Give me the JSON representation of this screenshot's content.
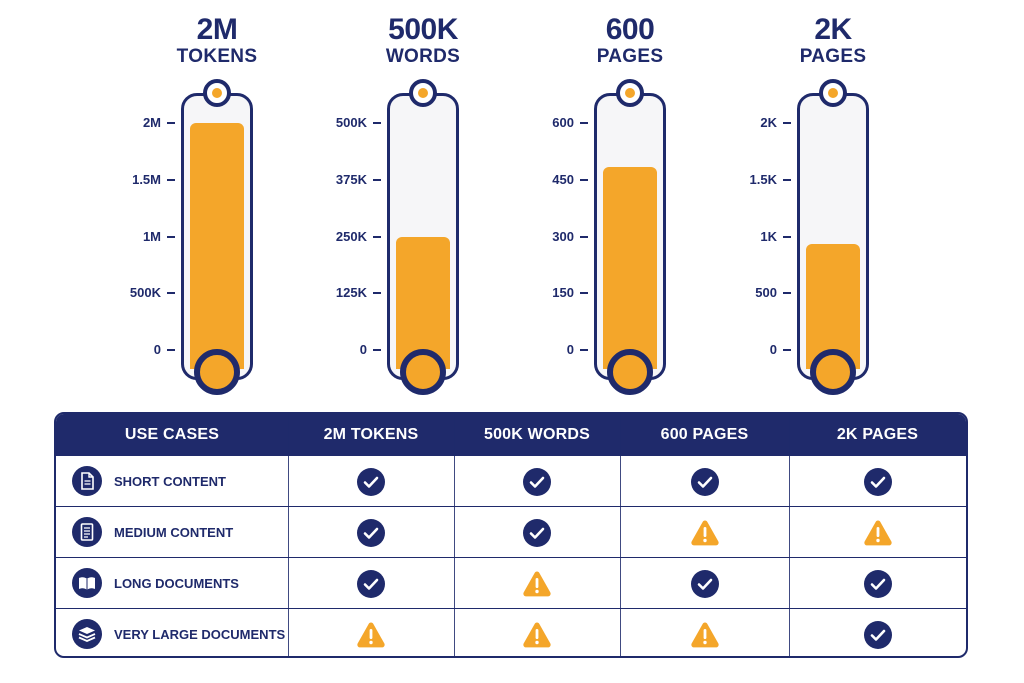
{
  "chart_data": [
    {
      "type": "bar",
      "title": "2M",
      "subtitle": "TOKENS",
      "values": [
        2000000
      ],
      "ylim": [
        0,
        2000000
      ],
      "tick_values": [
        0,
        500000,
        1000000,
        1500000,
        2000000
      ],
      "tick_labels": [
        "0",
        "500K",
        "1M",
        "1.5M",
        "2M"
      ]
    },
    {
      "type": "bar",
      "title": "500K",
      "subtitle": "WORDS",
      "values": [
        250000
      ],
      "ylim": [
        0,
        500000
      ],
      "tick_values": [
        0,
        125000,
        250000,
        375000,
        500000
      ],
      "tick_labels": [
        "0",
        "125K",
        "250K",
        "375K",
        "500K"
      ]
    },
    {
      "type": "bar",
      "title": "600",
      "subtitle": "PAGES",
      "values": [
        485
      ],
      "ylim": [
        0,
        600
      ],
      "tick_values": [
        0,
        150,
        300,
        450,
        600
      ],
      "tick_labels": [
        "0",
        "150",
        "300",
        "450",
        "600"
      ]
    },
    {
      "type": "bar",
      "title": "2K",
      "subtitle": "PAGES",
      "values": [
        930
      ],
      "ylim": [
        0,
        2000
      ],
      "tick_values": [
        0,
        500,
        1000,
        1500,
        2000
      ],
      "tick_labels": [
        "0",
        "500",
        "1K",
        "1.5K",
        "2K"
      ]
    }
  ],
  "table": {
    "headers": [
      "USE CASES",
      "2M TOKENS",
      "500K WORDS",
      "600 PAGES",
      "2K PAGES"
    ],
    "rows": [
      {
        "label": "SHORT CONTENT",
        "icon": "document-icon",
        "cells": [
          "check",
          "check",
          "check",
          "check"
        ]
      },
      {
        "label": "MEDIUM CONTENT",
        "icon": "document-lines-icon",
        "cells": [
          "check",
          "check",
          "warning",
          "warning"
        ]
      },
      {
        "label": "LONG DOCUMENTS",
        "icon": "open-book-icon",
        "cells": [
          "check",
          "warning",
          "check",
          "check"
        ]
      },
      {
        "label": "VERY LARGE DOCUMENTS",
        "icon": "stack-layers-icon",
        "cells": [
          "warning",
          "warning",
          "warning",
          "check"
        ]
      }
    ]
  },
  "colors": {
    "navy": "#1f2a6b",
    "orange": "#f4a62a"
  }
}
